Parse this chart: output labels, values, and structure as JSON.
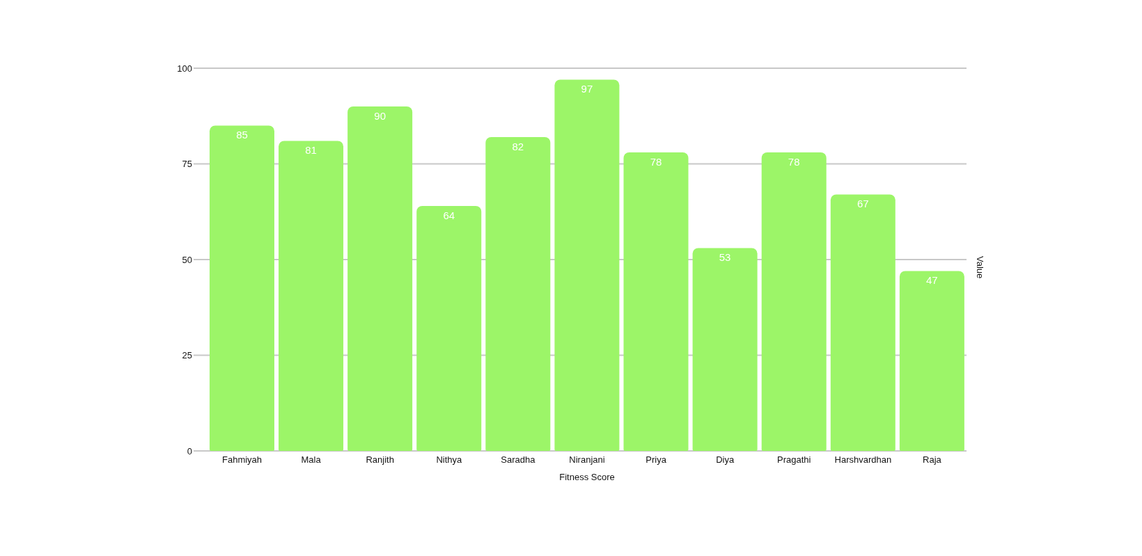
{
  "chart_data": {
    "type": "bar",
    "categories": [
      "Fahmiyah",
      "Mala",
      "Ranjith",
      "Nithya",
      "Saradha",
      "Niranjani",
      "Priya",
      "Diya",
      "Pragathi",
      "Harshvardhan",
      "Raja"
    ],
    "values": [
      85,
      81,
      90,
      64,
      82,
      97,
      78,
      53,
      78,
      67,
      47
    ],
    "color": "#9cf568",
    "xlabel": "Fitness Score",
    "ylabel": "Value",
    "ylim": [
      0,
      100
    ],
    "yticks": [
      0,
      25,
      50,
      75,
      100
    ],
    "grid": "y",
    "data_labels": true
  }
}
